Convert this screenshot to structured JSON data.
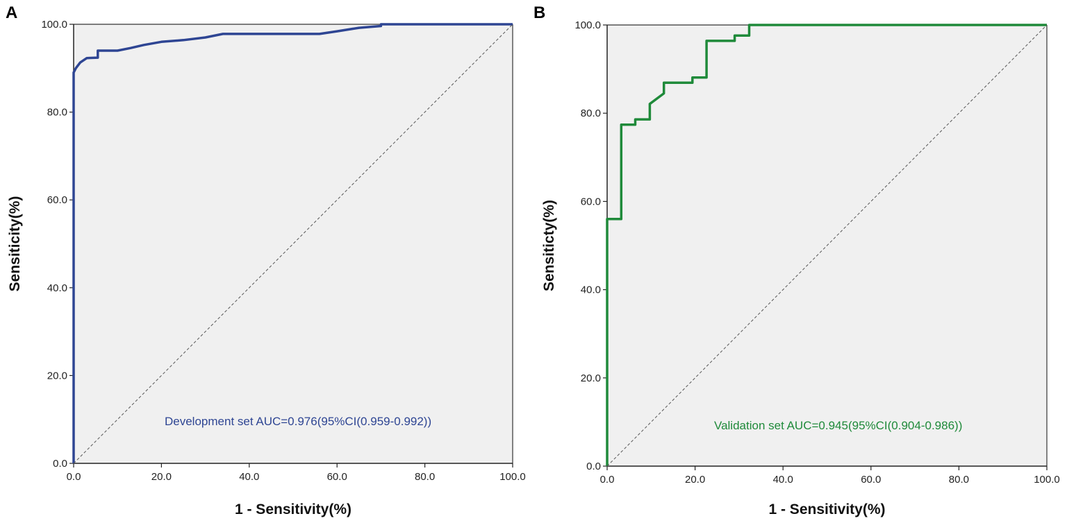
{
  "chart_data": [
    {
      "panel": "A",
      "type": "line",
      "title": "",
      "xlabel": "1 - Sensitivity(%)",
      "ylabel": "Sensiticity(%)",
      "xlim": [
        0,
        100
      ],
      "ylim": [
        0,
        100
      ],
      "xticks": [
        "0.0",
        "20.0",
        "40.0",
        "60.0",
        "80.0",
        "100.0"
      ],
      "yticks": [
        "0.0",
        "20.0",
        "40.0",
        "60.0",
        "80.0",
        "100.0"
      ],
      "grid": false,
      "annotation": "Development set AUC=0.976(95%CI(0.959-0.992))",
      "colors": {
        "curve": "#2e4593",
        "reference": "#555555",
        "background": "#f0f0f0"
      },
      "series": [
        {
          "name": "Development set ROC",
          "x": [
            0,
            0,
            0.5,
            1.5,
            3,
            5.5,
            5.5,
            6,
            10,
            13,
            16,
            20,
            25,
            30,
            34,
            40,
            50,
            56,
            60,
            65,
            70,
            70,
            72,
            100
          ],
          "y": [
            0,
            89,
            90,
            91.3,
            92.3,
            92.4,
            94,
            94,
            94,
            94.6,
            95.3,
            96,
            96.4,
            97,
            97.8,
            97.8,
            97.8,
            97.8,
            98.4,
            99.2,
            99.6,
            100,
            100,
            100
          ]
        },
        {
          "name": "Reference",
          "x": [
            0,
            100
          ],
          "y": [
            0,
            100
          ]
        }
      ]
    },
    {
      "panel": "B",
      "type": "line",
      "title": "",
      "xlabel": "1 - Sensitivity(%)",
      "ylabel": "Sensiticty(%)",
      "xlim": [
        0,
        100
      ],
      "ylim": [
        0,
        100
      ],
      "xticks": [
        "0.0",
        "20.0",
        "40.0",
        "60.0",
        "80.0",
        "100.0"
      ],
      "yticks": [
        "0.0",
        "20.0",
        "40.0",
        "60.0",
        "80.0",
        "100.0"
      ],
      "grid": false,
      "annotation": "Validation set AUC=0.945(95%CI(0.904-0.986))",
      "colors": {
        "curve": "#1f8a3a",
        "reference": "#555555",
        "background": "#f0f0f0"
      },
      "series": [
        {
          "name": "Validation set ROC",
          "x": [
            0,
            0,
            3.2,
            3.2,
            6.4,
            6.4,
            9.7,
            9.7,
            12.9,
            12.9,
            19.4,
            19.4,
            22.6,
            22.6,
            29,
            29,
            32.3,
            32.3,
            100
          ],
          "y": [
            0,
            56,
            56,
            77.4,
            77.4,
            78.6,
            78.6,
            82.1,
            84.5,
            86.9,
            86.9,
            88.1,
            88.1,
            96.4,
            96.4,
            97.6,
            97.6,
            100,
            100
          ]
        },
        {
          "name": "Reference",
          "x": [
            0,
            100
          ],
          "y": [
            0,
            100
          ]
        }
      ]
    }
  ]
}
